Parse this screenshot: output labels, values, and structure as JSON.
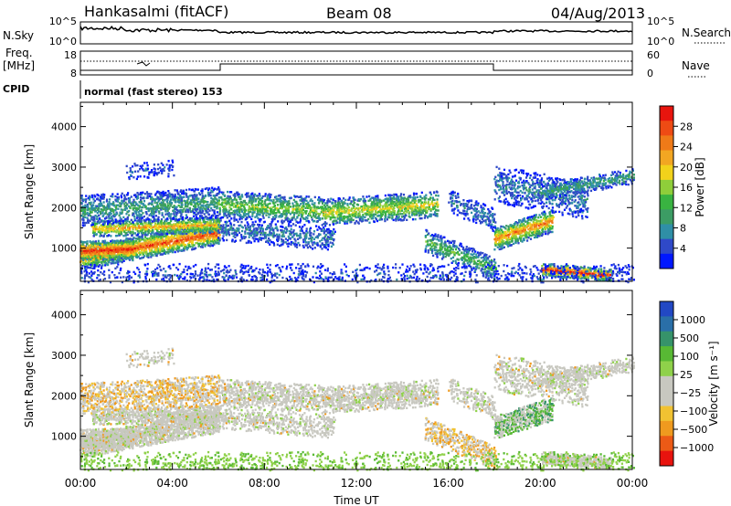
{
  "header": {
    "site": "Hankasalmi (fitACF)",
    "beam": "Beam 08",
    "date": "04/Aug/2013"
  },
  "noise_panel": {
    "left_label": "N.Sky",
    "right_label": "N.Search",
    "left_ticks": [
      "10^5",
      "10^0"
    ],
    "right_ticks": [
      "10^5",
      "10^0"
    ]
  },
  "freq_panel": {
    "left_label_1": "Freq.",
    "left_label_2": "[MHz]",
    "right_label": "Nave",
    "left_ticks": [
      "18",
      "8"
    ],
    "right_ticks": [
      "60",
      "0"
    ]
  },
  "cpid": {
    "label": "CPID",
    "text": "normal (fast stereo) 153"
  },
  "time_axis": {
    "label": "Time UT",
    "ticks": [
      "00:00",
      "04:00",
      "08:00",
      "12:00",
      "16:00",
      "20:00",
      "00:00"
    ]
  },
  "chart_data": [
    {
      "type": "heatmap",
      "quantity": "power",
      "ylabel": "Slant Range [km]",
      "xlabel": "Time UT",
      "xlim": [
        0,
        24
      ],
      "ylim": [
        180,
        4600
      ],
      "yticks": [
        "1000",
        "2000",
        "3000",
        "4000"
      ],
      "colorbar": {
        "label": "Power [dB]",
        "ticks": [
          "4",
          "8",
          "12",
          "16",
          "20",
          "24",
          "28"
        ],
        "colors": [
          "#0018ff",
          "#2f49c8",
          "#2f8fa6",
          "#3c9c64",
          "#39b341",
          "#8fce3a",
          "#f2d21b",
          "#f2a622",
          "#ef7a18",
          "#ee4b14",
          "#e8150e"
        ]
      }
    },
    {
      "type": "heatmap",
      "quantity": "velocity",
      "ylabel": "Slant Range [km]",
      "xlabel": "Time UT",
      "xlim": [
        0,
        24
      ],
      "ylim": [
        180,
        4600
      ],
      "yticks": [
        "1000",
        "2000",
        "3000",
        "4000"
      ],
      "colorbar": {
        "label": "Velocity [m s⁻¹]",
        "ticks": [
          "1000",
          "500",
          "100",
          "25",
          "−25",
          "−100",
          "−500",
          "−1000"
        ],
        "colors": [
          "#2248c4",
          "#2a6fa8",
          "#36936a",
          "#58b934",
          "#8fd14a",
          "#c8c8c0",
          "#c8c8c0",
          "#f1c232",
          "#ef9a1f",
          "#ec5a16",
          "#e8130e"
        ]
      }
    }
  ]
}
